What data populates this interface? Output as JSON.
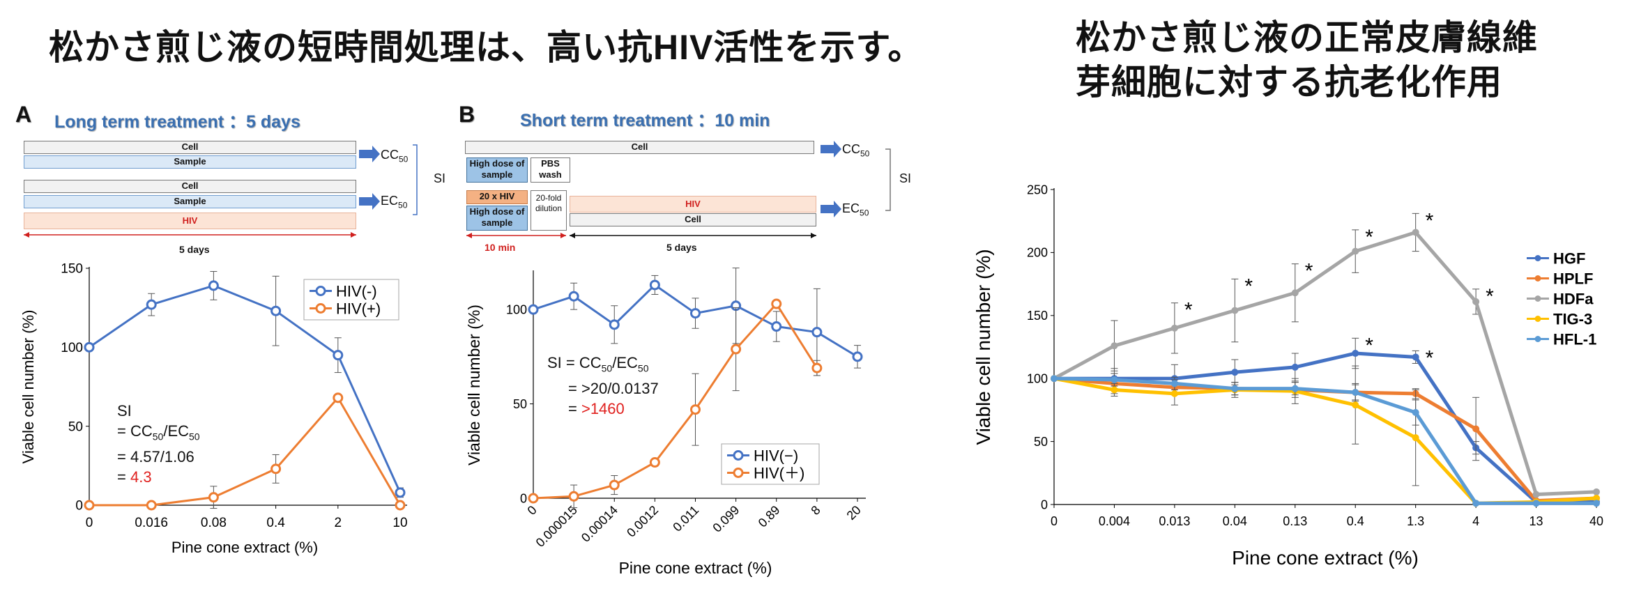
{
  "titles": {
    "main": "松かさ煎じ液の短時間処理は、高い抗HIV活性を示す。",
    "right_line1": "松かさ煎じ液の正常皮膚線維",
    "right_line2": "芽細胞に対する抗老化作用"
  },
  "panel_a": {
    "letter": "A",
    "heading": "Long term treatment ：5 days",
    "schedule": {
      "cell1": "Cell",
      "sample1": "Sample",
      "cell2": "Cell",
      "sample2": "Sample",
      "hiv": "HIV",
      "cc50": "CC",
      "ec50": "EC",
      "sub50": "50",
      "si": "SI",
      "duration": "5 days"
    },
    "annotation": {
      "l1": "SI",
      "l2a": "= CC",
      "l2b": "50",
      "l2c": "/EC",
      "l2d": "50",
      "l3": "= 4.57/1.06",
      "l4a": "= ",
      "l4b": "4.3"
    }
  },
  "panel_b": {
    "letter": "B",
    "heading": "Short term treatment ：10 min",
    "schedule": {
      "cell_top": "Cell",
      "high_dose1": "High dose of sample",
      "pbs": "PBS wash",
      "hiv20": "20 x HIV",
      "high_dose2": "High dose of sample",
      "dilution": "20-fold dilution",
      "hiv": "HIV",
      "cell_bottom": "Cell",
      "cc50": "CC",
      "ec50": "EC",
      "sub50": "50",
      "si": "SI",
      "ten_min": "10 min",
      "five_days": "5 days"
    },
    "annotation": {
      "l1a": "SI = CC",
      "l1b": "50",
      "l1c": "/EC",
      "l1d": "50",
      "l2": "= >20/0.0137",
      "l3a": "= ",
      "l3b": ">1460"
    }
  },
  "colors": {
    "blue": "#4472c4",
    "orange": "#ed7d31",
    "gray": "#a5a5a5",
    "yellow": "#ffc000",
    "lightblue": "#5b9bd5",
    "red": "#e0201e",
    "heading_blue": "#3a6fb0"
  },
  "chart_data": [
    {
      "type": "line",
      "categories": [
        "0",
        "0.016",
        "0.08",
        "0.4",
        "2",
        "10"
      ],
      "xlabel": "Pine cone extract (%)",
      "ylabel": "Viable cell number (%)",
      "ylim": [
        0,
        150
      ],
      "yticks": [
        "0",
        "50",
        "100",
        "150"
      ],
      "grid": false,
      "legend": "top-right",
      "series": [
        {
          "name": "HIV(-)",
          "color": "#4472c4",
          "marker": "open-circle",
          "values": [
            100,
            127,
            139,
            123,
            95,
            8
          ],
          "errors": [
            0,
            7,
            9,
            22,
            11,
            3
          ]
        },
        {
          "name": "HIV(+)",
          "color": "#ed7d31",
          "marker": "open-circle",
          "values": [
            0,
            0,
            5,
            23,
            68,
            0
          ],
          "errors": [
            0,
            0,
            7,
            9,
            0,
            0
          ]
        }
      ]
    },
    {
      "type": "line",
      "categories": [
        "0",
        "0.000015",
        "0.00014",
        "0.0012",
        "0.011",
        "0.099",
        "0.89",
        "8",
        "20"
      ],
      "xlabel": "Pine cone extract (%)",
      "ylabel": "Viable cell number (%)",
      "ylim": [
        0,
        120
      ],
      "yticks": [
        "0",
        "50",
        "100"
      ],
      "grid": false,
      "legend": "bottom-right",
      "series": [
        {
          "name": "HIV(−)",
          "color": "#4472c4",
          "marker": "open-circle",
          "values": [
            100,
            107,
            92,
            113,
            98,
            102,
            91,
            88,
            75
          ],
          "errors": [
            0,
            7,
            10,
            5,
            8,
            20,
            8,
            23,
            6
          ]
        },
        {
          "name": "HIV(＋)",
          "color": "#ed7d31",
          "marker": "open-circle",
          "values": [
            0,
            1,
            7,
            19,
            47,
            79,
            103,
            69,
            null
          ],
          "errors": [
            0,
            6,
            5,
            0,
            19,
            22,
            0,
            4,
            0
          ]
        }
      ]
    },
    {
      "type": "line",
      "categories": [
        "0",
        "0.004",
        "0.013",
        "0.04",
        "0.13",
        "0.4",
        "1.3",
        "4",
        "13",
        "40"
      ],
      "xlabel": "Pine cone extract (%)",
      "ylabel": "Viable cell number (%)",
      "ylim": [
        0,
        250
      ],
      "yticks": [
        "0",
        "50",
        "100",
        "150",
        "200",
        "250"
      ],
      "grid": false,
      "legend": "right",
      "significance": [
        {
          "series": "HDFa",
          "points": [
            2,
            3,
            4,
            5,
            6,
            7
          ]
        },
        {
          "series": "HGF",
          "points": [
            5,
            6
          ]
        }
      ],
      "series": [
        {
          "name": "HGF",
          "color": "#4472c4",
          "values": [
            100,
            100,
            100,
            105,
            109,
            120,
            117,
            45,
            2,
            2
          ],
          "errors": [
            0,
            8,
            11,
            10,
            11,
            12,
            5,
            5,
            0,
            0
          ]
        },
        {
          "name": "HPLF",
          "color": "#ed7d31",
          "values": [
            100,
            96,
            93,
            92,
            91,
            89,
            88,
            60,
            3,
            5
          ],
          "errors": [
            0,
            8,
            6,
            5,
            6,
            6,
            4,
            25,
            0,
            0
          ]
        },
        {
          "name": "HDFa",
          "color": "#a5a5a5",
          "values": [
            100,
            126,
            140,
            154,
            168,
            201,
            216,
            161,
            8,
            10
          ],
          "errors": [
            0,
            20,
            20,
            25,
            23,
            17,
            15,
            10,
            0,
            0
          ]
        },
        {
          "name": "TIG-3",
          "color": "#ffc000",
          "values": [
            100,
            91,
            88,
            91,
            90,
            79,
            53,
            1,
            2,
            5
          ],
          "errors": [
            0,
            5,
            9,
            6,
            10,
            31,
            38,
            0,
            0,
            0
          ]
        },
        {
          "name": "HFL-1",
          "color": "#5b9bd5",
          "values": [
            100,
            99,
            96,
            92,
            92,
            89,
            73,
            1,
            1,
            1
          ],
          "errors": [
            0,
            5,
            5,
            5,
            5,
            7,
            10,
            0,
            0,
            0
          ]
        }
      ]
    }
  ]
}
